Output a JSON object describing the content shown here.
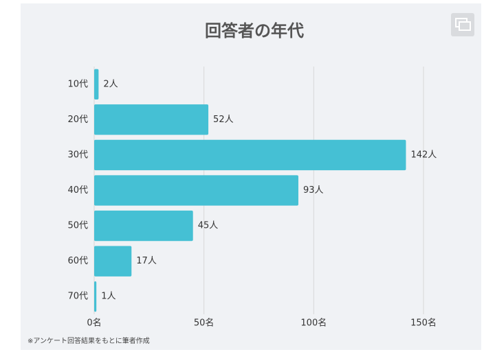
{
  "chart_data": {
    "type": "bar",
    "orientation": "horizontal",
    "title": "回答者の年代",
    "categories": [
      "10代",
      "20代",
      "30代",
      "40代",
      "50代",
      "60代",
      "70代"
    ],
    "values": [
      2,
      52,
      142,
      93,
      45,
      17,
      1
    ],
    "value_labels": [
      "2人",
      "52人",
      "142人",
      "93人",
      "45人",
      "17人",
      "1人"
    ],
    "color": "#45c0d4",
    "xlim": [
      0,
      150
    ],
    "xticks": [
      {
        "value": 0,
        "label": "0名"
      },
      {
        "value": 50,
        "label": "50名"
      },
      {
        "value": 100,
        "label": "100名"
      },
      {
        "value": 150,
        "label": "150名"
      }
    ],
    "grid": true,
    "note": "※アンケート回答結果をもとに筆者作成"
  }
}
